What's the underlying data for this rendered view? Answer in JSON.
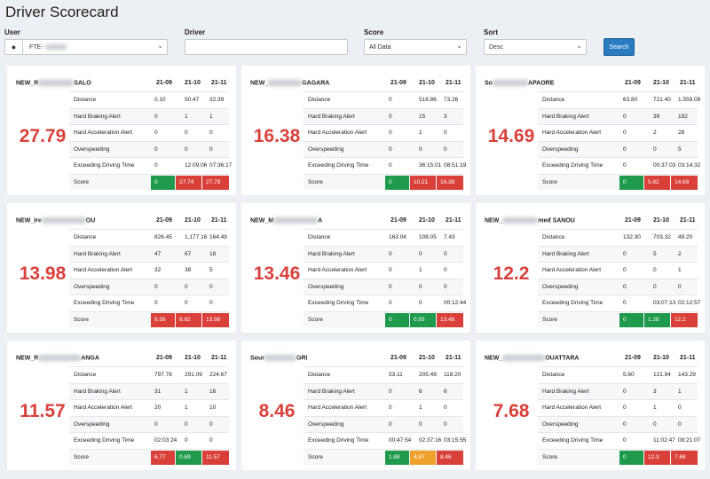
{
  "page_title": "Driver Scorecard",
  "filters": {
    "user_label": "User",
    "user_value": "FTE-",
    "driver_label": "Driver",
    "driver_value": "",
    "score_label": "Score",
    "score_value": "All Data",
    "sort_label": "Sort",
    "sort_value": "Desc",
    "search_label": "Search"
  },
  "columns": [
    "21-09",
    "21-10",
    "21-11"
  ],
  "metric_labels": [
    "Distance",
    "Hard Braking Alert",
    "Hard Acceleration Alert",
    "Overspeeding",
    "Exceeding Driving Time",
    "Score"
  ],
  "colors": {
    "green": "#1f9a4c",
    "red": "#d9403a",
    "orange": "#eda12b",
    "search_button": "#2a7bc0"
  },
  "cards": [
    {
      "name_prefix": "NEW_R",
      "name_suffix": "SALO",
      "score": "27.79",
      "rows": [
        [
          "0.10",
          "50.47",
          "32.39"
        ],
        [
          "0",
          "1",
          "1"
        ],
        [
          "0",
          "0",
          "0"
        ],
        [
          "0",
          "0",
          "0"
        ],
        [
          "0",
          "12:09:06",
          "07:36:17"
        ]
      ],
      "scores": [
        {
          "v": "0",
          "c": "green"
        },
        {
          "v": "27.74",
          "c": "red"
        },
        {
          "v": "27.79",
          "c": "red"
        }
      ]
    },
    {
      "name_prefix": "NEW_",
      "name_suffix": "GAGARA",
      "score": "16.38",
      "rows": [
        [
          "0",
          "518.86",
          "73.26"
        ],
        [
          "0",
          "15",
          "3"
        ],
        [
          "0",
          "1",
          "0"
        ],
        [
          "0",
          "0",
          "0"
        ],
        [
          "0",
          "36:15:01",
          "08:51:19"
        ]
      ],
      "scores": [
        {
          "v": "0",
          "c": "green"
        },
        {
          "v": "10.21",
          "c": "red"
        },
        {
          "v": "16.38",
          "c": "red"
        }
      ]
    },
    {
      "name_prefix": "So",
      "name_suffix": "APAORE",
      "score": "14.69",
      "rows": [
        [
          "63.80",
          "721.40",
          "1,559.09"
        ],
        [
          "0",
          "39",
          "192"
        ],
        [
          "0",
          "2",
          "28"
        ],
        [
          "0",
          "0",
          "5"
        ],
        [
          "0",
          "00:37:03",
          "03:14:32"
        ]
      ],
      "scores": [
        {
          "v": "0",
          "c": "green"
        },
        {
          "v": "5.82",
          "c": "red"
        },
        {
          "v": "14.69",
          "c": "red"
        }
      ]
    },
    {
      "name_prefix": "NEW_Ire",
      "name_suffix": "OU",
      "score": "13.98",
      "rows": [
        [
          "826.45",
          "1,177.16",
          "164.49"
        ],
        [
          "47",
          "67",
          "18"
        ],
        [
          "32",
          "38",
          "5"
        ],
        [
          "0",
          "0",
          "0"
        ],
        [
          "0",
          "0",
          "0"
        ]
      ],
      "scores": [
        {
          "v": "9.56",
          "c": "red"
        },
        {
          "v": "8.92",
          "c": "red"
        },
        {
          "v": "13.98",
          "c": "red"
        }
      ]
    },
    {
      "name_prefix": "NEW_M",
      "name_suffix": "A",
      "score": "13.46",
      "rows": [
        [
          "163.04",
          "108.05",
          "7.43"
        ],
        [
          "0",
          "0",
          "0"
        ],
        [
          "0",
          "1",
          "0"
        ],
        [
          "0",
          "0",
          "0"
        ],
        [
          "0",
          "0",
          "00:12:44"
        ]
      ],
      "scores": [
        {
          "v": "0",
          "c": "green"
        },
        {
          "v": "0.93",
          "c": "green"
        },
        {
          "v": "13.46",
          "c": "red"
        }
      ]
    },
    {
      "name_prefix": "NEW_",
      "name_suffix": "med SANOU",
      "score": "12.2",
      "rows": [
        [
          "132.30",
          "703.32",
          "49.20"
        ],
        [
          "0",
          "5",
          "2"
        ],
        [
          "0",
          "0",
          "1"
        ],
        [
          "0",
          "0",
          "0"
        ],
        [
          "0",
          "03:07:13",
          "02:12:57"
        ]
      ],
      "scores": [
        {
          "v": "0",
          "c": "green"
        },
        {
          "v": "1.28",
          "c": "green"
        },
        {
          "v": "12.2",
          "c": "red"
        }
      ]
    },
    {
      "name_prefix": "NEW_R",
      "name_suffix": "ANGA",
      "score": "11.57",
      "rows": [
        [
          "797.78",
          "291.09",
          "224.67"
        ],
        [
          "31",
          "1",
          "16"
        ],
        [
          "20",
          "1",
          "10"
        ],
        [
          "0",
          "0",
          "0"
        ],
        [
          "02:03:24",
          "0",
          "0"
        ]
      ],
      "scores": [
        {
          "v": "6.77",
          "c": "red"
        },
        {
          "v": "0.69",
          "c": "green"
        },
        {
          "v": "11.57",
          "c": "red"
        }
      ]
    },
    {
      "name_prefix": "Sour",
      "name_suffix": "GRI",
      "score": "8.46",
      "rows": [
        [
          "53.11",
          "205.49",
          "118.20"
        ],
        [
          "0",
          "6",
          "6"
        ],
        [
          "0",
          "1",
          "0"
        ],
        [
          "0",
          "0",
          "0"
        ],
        [
          "00:47:54",
          "02:37:16",
          "03:15:55"
        ]
      ],
      "scores": [
        {
          "v": "1.88",
          "c": "green"
        },
        {
          "v": "4.87",
          "c": "orange"
        },
        {
          "v": "8.46",
          "c": "red"
        }
      ]
    },
    {
      "name_prefix": "NEW_",
      "name_suffix": "OUATTARA",
      "score": "7.68",
      "rows": [
        [
          "5.60",
          "121.94",
          "143.29"
        ],
        [
          "0",
          "3",
          "1"
        ],
        [
          "0",
          "1",
          "0"
        ],
        [
          "0",
          "0",
          "0"
        ],
        [
          "0",
          "11:02:47",
          "08:21:07"
        ]
      ],
      "scores": [
        {
          "v": "0",
          "c": "green"
        },
        {
          "v": "12.3",
          "c": "red"
        },
        {
          "v": "7.68",
          "c": "red"
        }
      ]
    }
  ]
}
